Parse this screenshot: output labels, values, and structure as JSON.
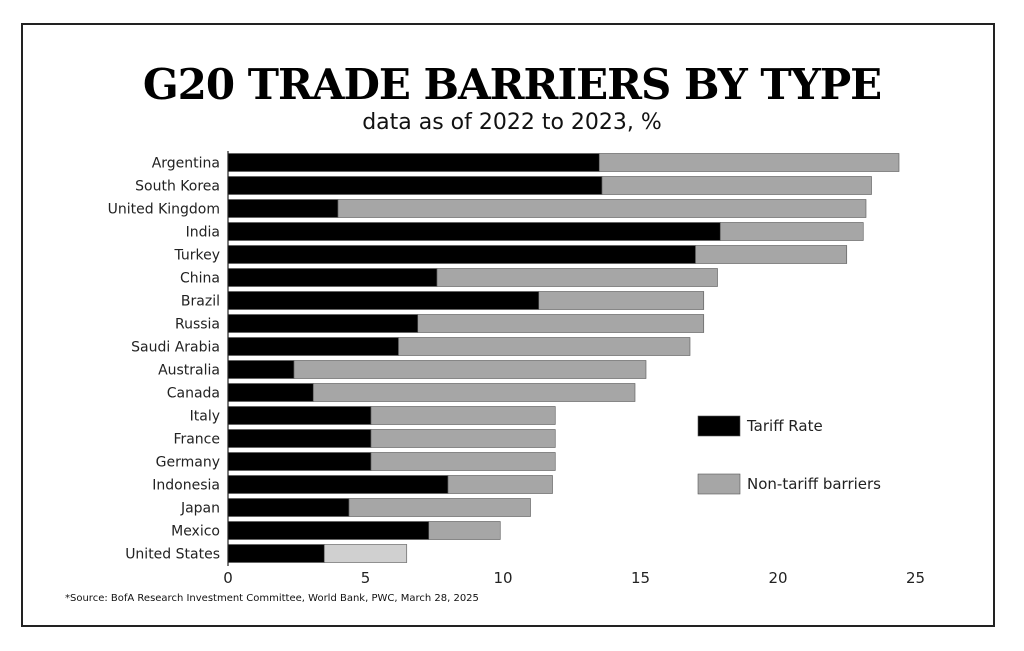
{
  "chart_data": {
    "type": "bar",
    "orientation": "horizontal",
    "stacked": true,
    "title": "G20 TRADE BARRIERS BY TYPE",
    "subtitle": "data as of 2022 to 2023, %",
    "categories": [
      "Argentina",
      "South Korea",
      "United Kingdom",
      "India",
      "Turkey",
      "China",
      "Brazil",
      "Russia",
      "Saudi Arabia",
      "Australia",
      "Canada",
      "Italy",
      "France",
      "Germany",
      "Indonesia",
      "Japan",
      "Mexico",
      "United States"
    ],
    "series": [
      {
        "name": "Tariff Rate",
        "color": "#000000",
        "values": [
          13.5,
          13.6,
          4.0,
          17.9,
          17.0,
          7.6,
          11.3,
          6.9,
          6.2,
          2.4,
          3.1,
          5.2,
          5.2,
          5.2,
          8.0,
          4.4,
          7.3,
          3.5
        ]
      },
      {
        "name": "Non-tariff barriers",
        "color": "#a6a6a6",
        "values": [
          10.9,
          9.8,
          19.2,
          5.2,
          5.5,
          10.2,
          6.0,
          10.4,
          10.6,
          12.8,
          11.7,
          6.7,
          6.7,
          6.7,
          3.8,
          6.6,
          2.6,
          3.0
        ]
      }
    ],
    "highlight_colors": {
      "United States": "#d0d0d0"
    },
    "xlim": [
      0,
      25
    ],
    "xticks": [
      "0",
      "5",
      "10",
      "15",
      "20",
      "25"
    ],
    "xlabel": "",
    "ylabel": "",
    "legend": "right",
    "grid": false
  },
  "source": "*Source: BofA Research Investment Committee, World Bank, PWC, March 28, 2025"
}
